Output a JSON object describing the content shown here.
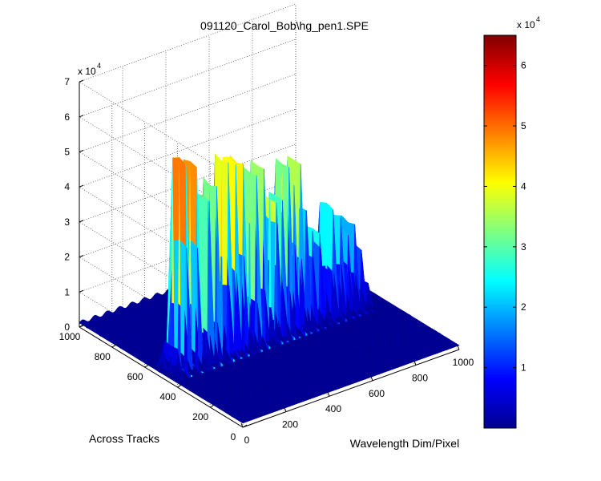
{
  "chart_data": {
    "type": "surface",
    "title": "091120_Carol_Bob\\hg_pen1.SPE",
    "xlabel": "Wavelength Dim/Pixel",
    "ylabel": "Across Tracks",
    "zlabel": "",
    "xlim": [
      0,
      1000
    ],
    "ylim": [
      0,
      1000
    ],
    "zlim": [
      0,
      70000
    ],
    "x_ticks": [
      "0",
      "200",
      "400",
      "600",
      "800",
      "1000"
    ],
    "y_ticks": [
      "0",
      "200",
      "400",
      "600",
      "800",
      "1000"
    ],
    "z_ticks": [
      "0",
      "1",
      "2",
      "3",
      "4",
      "5",
      "6",
      "7"
    ],
    "z_exponent": {
      "base": "x 10",
      "power": "4"
    },
    "colorbar": {
      "colormap": "jet",
      "ticks": [
        "1",
        "2",
        "3",
        "4",
        "5",
        "6"
      ],
      "range": [
        0,
        65000
      ],
      "exponent": {
        "base": "x 10",
        "power": "4"
      }
    },
    "grid": true,
    "projection": "3d",
    "ridge_y_range": [
      440,
      520
    ],
    "spectral_lines": [
      {
        "x": 30,
        "z": 8000
      },
      {
        "x": 70,
        "z": 62000
      },
      {
        "x": 120,
        "z": 60000
      },
      {
        "x": 150,
        "z": 9000
      },
      {
        "x": 175,
        "z": 58000
      },
      {
        "x": 210,
        "z": 57000
      },
      {
        "x": 245,
        "z": 11000
      },
      {
        "x": 265,
        "z": 56000
      },
      {
        "x": 300,
        "z": 55000
      },
      {
        "x": 335,
        "z": 54000
      },
      {
        "x": 365,
        "z": 14000
      },
      {
        "x": 395,
        "z": 53000
      },
      {
        "x": 430,
        "z": 52000
      },
      {
        "x": 460,
        "z": 12000
      },
      {
        "x": 490,
        "z": 45000
      },
      {
        "x": 515,
        "z": 40000
      },
      {
        "x": 545,
        "z": 52000
      },
      {
        "x": 570,
        "z": 44000
      },
      {
        "x": 600,
        "z": 48000
      },
      {
        "x": 625,
        "z": 42000
      },
      {
        "x": 655,
        "z": 30000
      },
      {
        "x": 690,
        "z": 30000
      },
      {
        "x": 720,
        "z": 9000
      },
      {
        "x": 750,
        "z": 32000
      },
      {
        "x": 785,
        "z": 29000
      },
      {
        "x": 820,
        "z": 24000
      },
      {
        "x": 850,
        "z": 25000
      },
      {
        "x": 880,
        "z": 18000
      },
      {
        "x": 910,
        "z": 8000
      }
    ]
  }
}
